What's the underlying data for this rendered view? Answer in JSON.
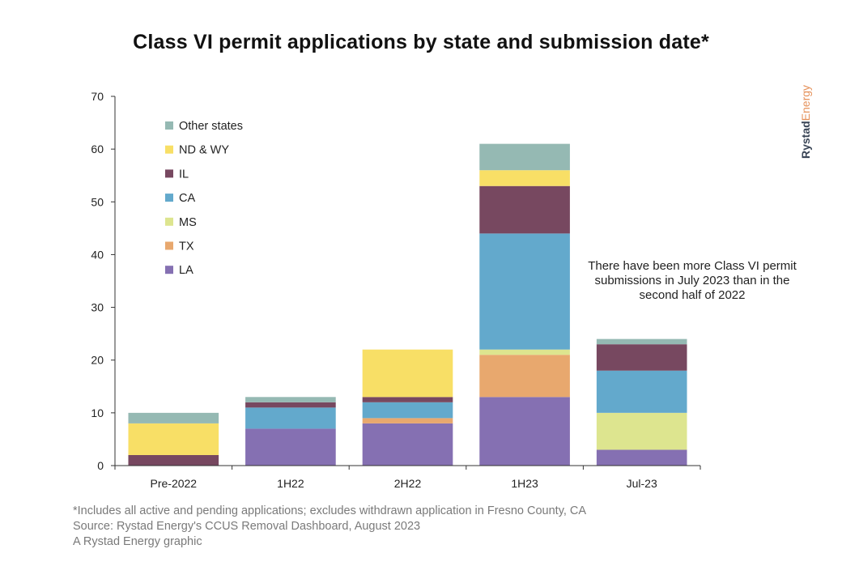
{
  "chart_data": {
    "type": "bar",
    "stacked": true,
    "title": "Class VI permit applications by state and submission date*",
    "xlabel": "",
    "ylabel": "",
    "ylim": [
      0,
      70
    ],
    "yticks": [
      0,
      10,
      20,
      30,
      40,
      50,
      60,
      70
    ],
    "grid": false,
    "legend_position": "top-left",
    "categories": [
      "Pre-2022",
      "1H22",
      "2H22",
      "1H23",
      "Jul-23"
    ],
    "series": [
      {
        "name": "LA",
        "color": "#8570b2",
        "values": [
          0,
          7,
          8,
          13,
          3
        ]
      },
      {
        "name": "TX",
        "color": "#e8a86e",
        "values": [
          0,
          0,
          1,
          8,
          0
        ]
      },
      {
        "name": "MS",
        "color": "#dde58f",
        "values": [
          0,
          0,
          0,
          1,
          7
        ]
      },
      {
        "name": "CA",
        "color": "#63a9cc",
        "values": [
          0,
          4,
          3,
          22,
          8
        ]
      },
      {
        "name": "IL",
        "color": "#774860",
        "values": [
          2,
          1,
          1,
          9,
          5
        ]
      },
      {
        "name": "ND & WY",
        "color": "#f8df66",
        "values": [
          6,
          0,
          9,
          3,
          0
        ]
      },
      {
        "name": "Other states",
        "color": "#95b9b3",
        "values": [
          2,
          1,
          0,
          5,
          1
        ]
      }
    ],
    "annotations": [
      "There have been more Class VI permit submissions in July 2023 than in the second half of 2022"
    ]
  },
  "brand": {
    "part1": "Rystad",
    "part2": "Energy",
    "color1": "#3a4556",
    "color2": "#e5915a"
  },
  "footnotes": [
    "*Includes all active and pending applications; excludes withdrawn application in Fresno County, CA",
    "Source: Rystad Energy's CCUS Removal Dashboard, August 2023",
    "A Rystad Energy graphic"
  ]
}
